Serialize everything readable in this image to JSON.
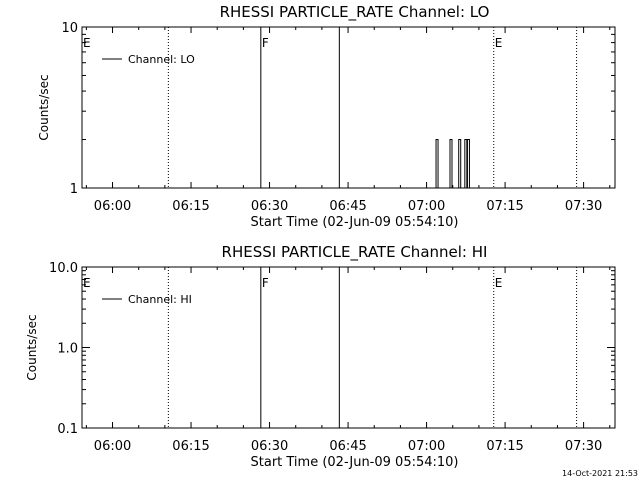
{
  "chart_data": [
    {
      "type": "line",
      "title": "RHESSI PARTICLE_RATE Channel: LO",
      "xlabel": "Start Time (02-Jun-09 05:54:10)",
      "ylabel": "Counts/sec",
      "x_time_start": "05:54:10",
      "x_time_end": "07:36:00",
      "x_ticks": [
        "06:00",
        "06:15",
        "06:30",
        "06:45",
        "07:00",
        "07:15",
        "07:30"
      ],
      "y_scale": "log",
      "ylim": [
        1,
        10
      ],
      "y_ticks": [
        "1",
        "10"
      ],
      "legend": "Channel: LO",
      "legend_position": "top-left",
      "markers": [
        {
          "label": "E",
          "time": "05:54:10",
          "style": "none"
        },
        {
          "label": "",
          "time": "06:10:40",
          "style": "dotted"
        },
        {
          "label": "F",
          "time": "06:28:20",
          "style": "solid"
        },
        {
          "label": "",
          "time": "06:43:20",
          "style": "solid"
        },
        {
          "label": "E",
          "time": "07:12:50",
          "style": "dotted"
        },
        {
          "label": "",
          "time": "07:28:40",
          "style": "dotted"
        }
      ],
      "series": [
        {
          "spikes": [
            {
              "time": "07:02:00",
              "value": 2
            },
            {
              "time": "07:04:40",
              "value": 2
            },
            {
              "time": "07:06:20",
              "value": 2
            },
            {
              "time": "07:07:30",
              "value": 2
            },
            {
              "time": "07:08:00",
              "value": 2
            }
          ]
        }
      ]
    },
    {
      "type": "line",
      "title": "RHESSI PARTICLE_RATE Channel: HI",
      "xlabel": "Start Time (02-Jun-09 05:54:10)",
      "ylabel": "Counts/sec",
      "x_time_start": "05:54:10",
      "x_time_end": "07:36:00",
      "x_ticks": [
        "06:00",
        "06:15",
        "06:30",
        "06:45",
        "07:00",
        "07:15",
        "07:30"
      ],
      "y_scale": "log",
      "ylim": [
        0.1,
        10
      ],
      "y_ticks": [
        "0.1",
        "1.0",
        "10.0"
      ],
      "legend": "Channel: HI",
      "legend_position": "top-left",
      "markers": [
        {
          "label": "E",
          "time": "05:54:10",
          "style": "none"
        },
        {
          "label": "",
          "time": "06:10:40",
          "style": "dotted"
        },
        {
          "label": "F",
          "time": "06:28:20",
          "style": "solid"
        },
        {
          "label": "",
          "time": "06:43:20",
          "style": "solid"
        },
        {
          "label": "E",
          "time": "07:12:50",
          "style": "dotted"
        },
        {
          "label": "",
          "time": "07:28:40",
          "style": "dotted"
        }
      ],
      "series": [
        {
          "spikes": []
        }
      ]
    }
  ],
  "footer": {
    "timestamp": "14-Oct-2021 21:53"
  }
}
